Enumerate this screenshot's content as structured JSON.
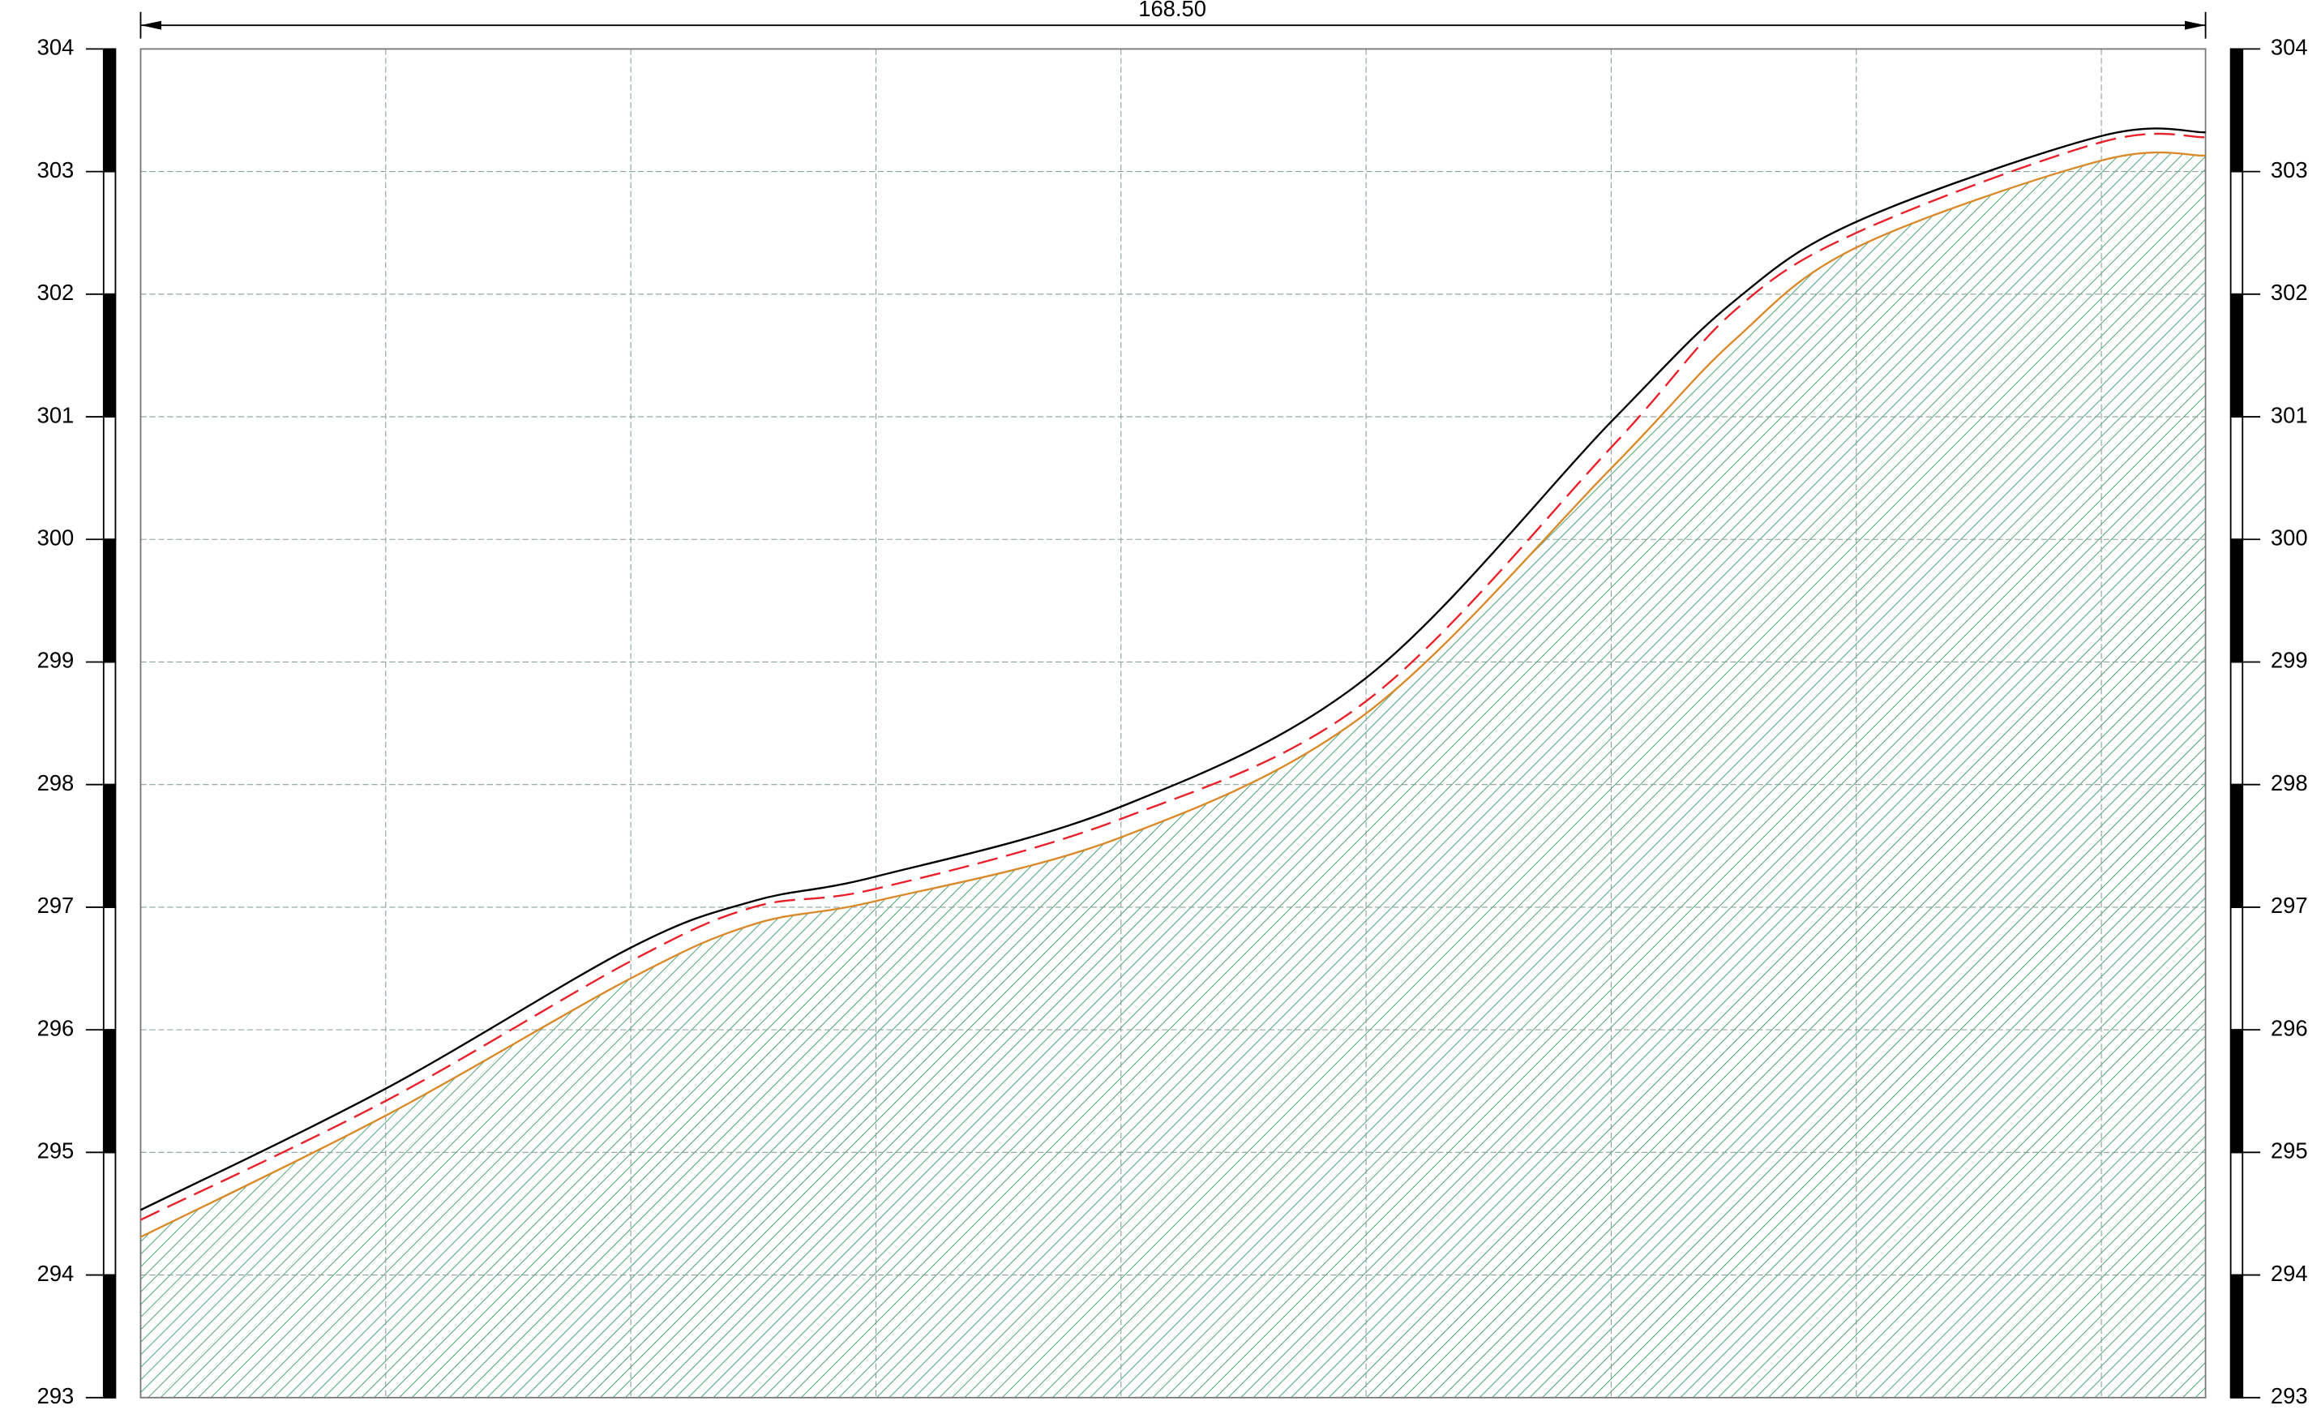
{
  "chart_data": {
    "type": "line",
    "annotation": "168.50",
    "x": [
      0,
      20,
      40,
      50,
      60,
      80,
      100,
      120,
      130,
      140,
      160,
      168.5
    ],
    "series": [
      {
        "color": "#000000",
        "dash": false,
        "values": [
          294.53,
          295.52,
          296.67,
          297.05,
          297.25,
          297.82,
          298.87,
          300.96,
          301.94,
          302.59,
          303.29,
          303.32
        ]
      },
      {
        "color": "#e8202a",
        "dash": true,
        "values": [
          294.45,
          295.42,
          296.56,
          297.0,
          297.15,
          297.72,
          298.68,
          300.75,
          301.86,
          302.5,
          303.24,
          303.28
        ]
      },
      {
        "color": "#d98a2a",
        "dash": false,
        "fill_below": true,
        "fill_color": "#3a9a6a",
        "values": [
          294.31,
          295.3,
          296.42,
          296.86,
          297.05,
          297.57,
          298.58,
          300.58,
          301.62,
          302.38,
          303.09,
          303.13
        ]
      }
    ],
    "xlim": [
      0,
      168.5
    ],
    "xticks": [
      0,
      20,
      40,
      60,
      80,
      100,
      120,
      140,
      160
    ],
    "ylim": [
      293,
      304
    ],
    "yticks": [
      293,
      294,
      295,
      296,
      297,
      298,
      299,
      300,
      301,
      302,
      303,
      304
    ],
    "grid": true
  }
}
